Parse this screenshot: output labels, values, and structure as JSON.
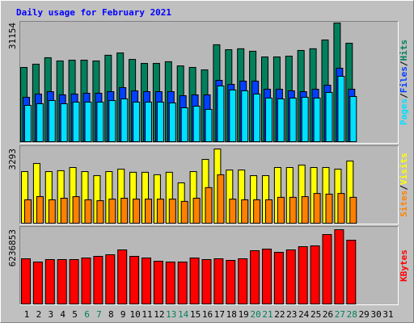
{
  "chart_data": [
    {
      "type": "bar",
      "title": "Daily usage for February 2021",
      "ylim": [
        0,
        31154
      ],
      "yticks": [
        31154
      ],
      "separator": "/",
      "series": [
        {
          "name": "Hits",
          "color": "#00805c",
          "values": [
            19500,
            20350,
            22050,
            21200,
            21400,
            21400,
            21200,
            22700,
            23300,
            21600,
            20550,
            20550,
            21000,
            19900,
            19500,
            18850,
            25450,
            24150,
            24400,
            23750,
            22250,
            22250,
            22450,
            23950,
            24400,
            26700,
            31154,
            25850,
            null,
            null,
            null
          ]
        },
        {
          "name": "Files",
          "color": "#0040ff",
          "values": [
            11660,
            12510,
            13140,
            12300,
            12510,
            12720,
            12720,
            13140,
            14200,
            13360,
            13140,
            13140,
            13140,
            12080,
            12300,
            12300,
            16110,
            15050,
            15900,
            15900,
            13780,
            13780,
            13360,
            13140,
            13780,
            14840,
            19290,
            13780,
            null,
            null,
            null
          ]
        },
        {
          "name": "Pages",
          "color": "#00e0ff",
          "values": [
            9540,
            9960,
            10810,
            9960,
            10390,
            10390,
            10390,
            10810,
            11240,
            10390,
            10390,
            10390,
            10180,
            8900,
            9330,
            8480,
            14630,
            13570,
            13360,
            12510,
            11450,
            11240,
            11450,
            11660,
            11450,
            12930,
            17170,
            11870,
            null,
            null,
            null
          ]
        }
      ]
    },
    {
      "type": "bar",
      "ylim": [
        0,
        3293
      ],
      "yticks": [
        3293
      ],
      "separator": "/",
      "series": [
        {
          "name": "Visits",
          "color": "#ffff00",
          "values": [
            2290,
            2650,
            2290,
            2330,
            2470,
            2290,
            2110,
            2290,
            2400,
            2260,
            2260,
            2150,
            2260,
            1790,
            2290,
            2830,
            3293,
            2360,
            2360,
            2110,
            2110,
            2470,
            2470,
            2580,
            2470,
            2470,
            2400,
            2760,
            null,
            null,
            null
          ]
        },
        {
          "name": "Sites",
          "color": "#ff8000",
          "values": [
            1040,
            1180,
            1040,
            1110,
            1180,
            1040,
            1000,
            1070,
            1110,
            1070,
            1070,
            1070,
            1070,
            970,
            1110,
            1580,
            2150,
            1070,
            1040,
            1040,
            1040,
            1150,
            1150,
            1180,
            1320,
            1290,
            1320,
            1150,
            null,
            null,
            null
          ]
        }
      ]
    },
    {
      "type": "bar",
      "ylim": [
        0,
        6236853
      ],
      "yticks": [
        6236853
      ],
      "categories": [
        1,
        2,
        3,
        4,
        5,
        6,
        7,
        8,
        9,
        10,
        11,
        12,
        13,
        14,
        15,
        16,
        17,
        18,
        19,
        20,
        21,
        22,
        23,
        24,
        25,
        26,
        27,
        28,
        29,
        30,
        31
      ],
      "category_colors": [
        "#000000",
        "#000000",
        "#000000",
        "#000000",
        "#000000",
        "#00805c",
        "#00805c",
        "#000000",
        "#000000",
        "#000000",
        "#000000",
        "#000000",
        "#00805c",
        "#00805c",
        "#000000",
        "#000000",
        "#000000",
        "#000000",
        "#000000",
        "#00805c",
        "#00805c",
        "#000000",
        "#000000",
        "#000000",
        "#000000",
        "#000000",
        "#00805c",
        "#00805c",
        "#000000",
        "#000000",
        "#000000"
      ],
      "series": [
        {
          "name": "KBytes",
          "color": "#ff0000",
          "values": [
            3796000,
            3525000,
            3729000,
            3729000,
            3729000,
            3864000,
            4000000,
            4135000,
            4542000,
            4000000,
            3864000,
            3593000,
            3525000,
            3525000,
            3864000,
            3729000,
            3796000,
            3661000,
            3796000,
            4474000,
            4610000,
            4339000,
            4542000,
            4813000,
            4881000,
            5830000,
            6236853,
            5356000,
            null,
            null,
            null
          ]
        }
      ]
    }
  ]
}
